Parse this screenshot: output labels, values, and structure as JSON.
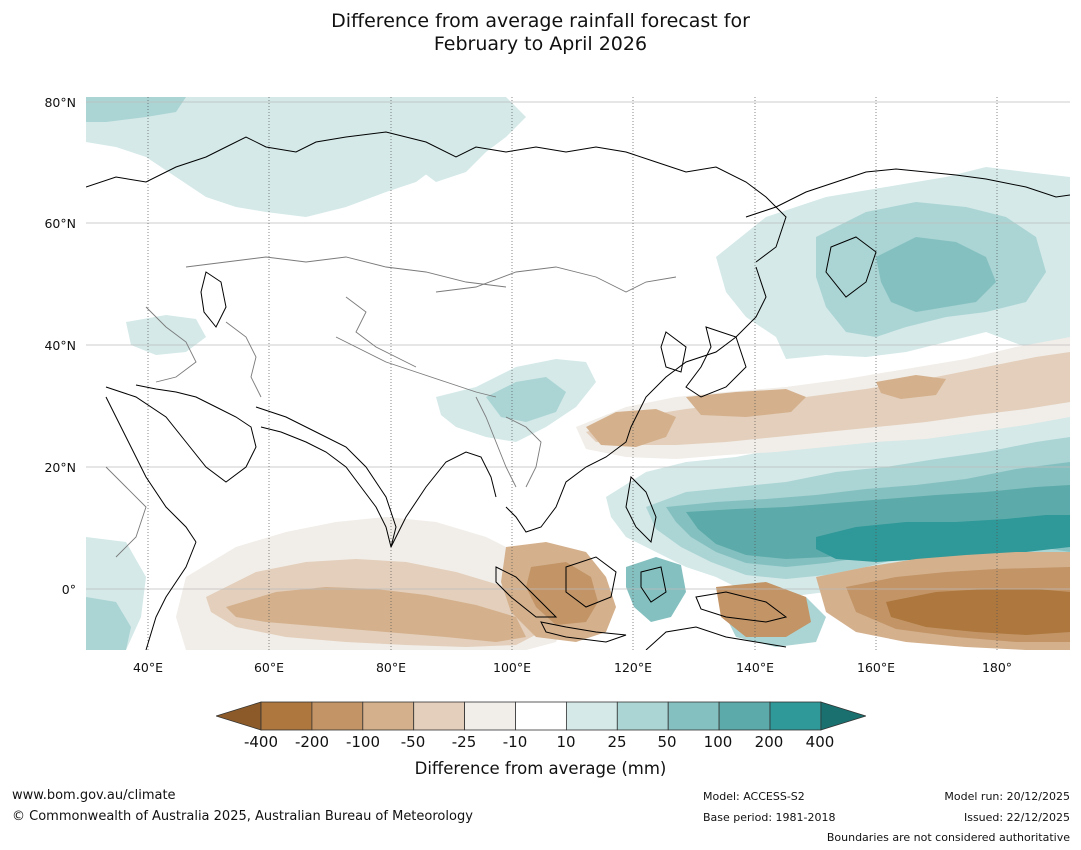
{
  "title_line1": "Difference from average rainfall forecast for",
  "title_line2": "February to April 2026",
  "lat_labels": [
    "80°N",
    "60°N",
    "40°N",
    "20°N",
    "0°"
  ],
  "lon_labels": [
    "40°E",
    "60°E",
    "80°E",
    "100°E",
    "120°E",
    "140°E",
    "160°E",
    "180°"
  ],
  "colorbar": {
    "ticks": [
      "-400",
      "-200",
      "-100",
      "-50",
      "-25",
      "-10",
      "10",
      "25",
      "50",
      "100",
      "200",
      "400"
    ],
    "colors": [
      "#8c5a28",
      "#ad773d",
      "#c29466",
      "#d4b08c",
      "#e3cfbb",
      "#f1ede8",
      "#ffffff",
      "#d4e9e8",
      "#abd4d4",
      "#85c0c0",
      "#5caaaa",
      "#2f9898",
      "#1a6f6f"
    ],
    "label": "Difference from average (mm)"
  },
  "footer": {
    "website": "www.bom.gov.au/climate",
    "copyright": "© Commonwealth of Australia 2025, Australian Bureau of Meteorology",
    "model": "Model: ACCESS-S2",
    "base_period": "Base period: 1981-2018",
    "model_run": "Model run: 20/12/2025",
    "issued": "Issued: 22/12/2025",
    "disclaimer": "Boundaries are not considered authoritative"
  }
}
